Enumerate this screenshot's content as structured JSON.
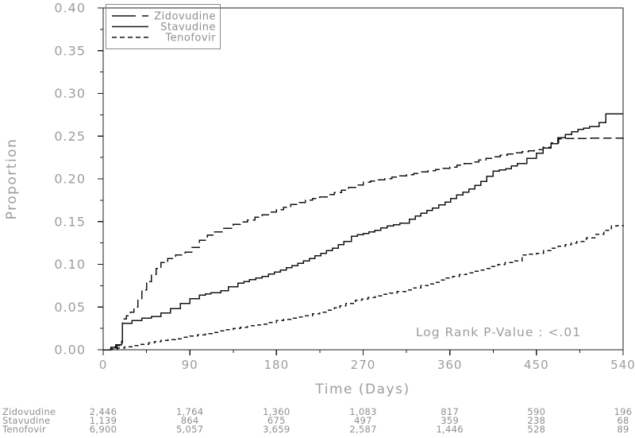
{
  "figure": {
    "background": "#ffffff",
    "curve_color": "#141414",
    "label_color": "#9d9d9d",
    "risk_text_color": "#8f8f8f"
  },
  "chart_data": {
    "type": "line",
    "subtype": "kaplan-meier-cumulative-incidence",
    "title": "",
    "xlabel": "Time (Days)",
    "ylabel": "Proportion",
    "xlim": [
      0,
      540
    ],
    "ylim": [
      0.0,
      0.4
    ],
    "x_ticks": [
      0,
      90,
      180,
      270,
      360,
      450,
      540
    ],
    "y_ticks": [
      0.0,
      0.05,
      0.1,
      0.15,
      0.2,
      0.25,
      0.3,
      0.35,
      0.4
    ],
    "grid": false,
    "legend_position": "top-left",
    "annotation": "Log Rank P-Value : <.01",
    "series": [
      {
        "name": "Zidovudine",
        "line_style": "long-dash",
        "points": [
          [
            0,
            0
          ],
          [
            8,
            0.002
          ],
          [
            14,
            0.005
          ],
          [
            19,
            0.008
          ],
          [
            20,
            0.036
          ],
          [
            24,
            0.04
          ],
          [
            28,
            0.044
          ],
          [
            32,
            0.05
          ],
          [
            36,
            0.058
          ],
          [
            40,
            0.07
          ],
          [
            45,
            0.08
          ],
          [
            50,
            0.088
          ],
          [
            55,
            0.095
          ],
          [
            60,
            0.102
          ],
          [
            67,
            0.107
          ],
          [
            75,
            0.111
          ],
          [
            85,
            0.114
          ],
          [
            92,
            0.12
          ],
          [
            100,
            0.128
          ],
          [
            108,
            0.134
          ],
          [
            115,
            0.138
          ],
          [
            125,
            0.142
          ],
          [
            135,
            0.147
          ],
          [
            150,
            0.152
          ],
          [
            165,
            0.158
          ],
          [
            180,
            0.164
          ],
          [
            195,
            0.17
          ],
          [
            210,
            0.175
          ],
          [
            225,
            0.179
          ],
          [
            240,
            0.184
          ],
          [
            255,
            0.19
          ],
          [
            270,
            0.196
          ],
          [
            285,
            0.199
          ],
          [
            300,
            0.202
          ],
          [
            315,
            0.205
          ],
          [
            330,
            0.208
          ],
          [
            345,
            0.211
          ],
          [
            360,
            0.214
          ],
          [
            375,
            0.218
          ],
          [
            390,
            0.222
          ],
          [
            405,
            0.226
          ],
          [
            420,
            0.229
          ],
          [
            435,
            0.232
          ],
          [
            448,
            0.234
          ],
          [
            457,
            0.237
          ],
          [
            465,
            0.242
          ],
          [
            473,
            0.247
          ],
          [
            540,
            0.248
          ]
        ]
      },
      {
        "name": "Stavudine",
        "line_style": "solid",
        "points": [
          [
            0,
            0
          ],
          [
            8,
            0.003
          ],
          [
            13,
            0.006
          ],
          [
            19,
            0.01
          ],
          [
            20,
            0.031
          ],
          [
            30,
            0.034
          ],
          [
            40,
            0.037
          ],
          [
            50,
            0.039
          ],
          [
            60,
            0.043
          ],
          [
            70,
            0.048
          ],
          [
            80,
            0.054
          ],
          [
            90,
            0.06
          ],
          [
            100,
            0.064
          ],
          [
            112,
            0.067
          ],
          [
            122,
            0.069
          ],
          [
            130,
            0.074
          ],
          [
            140,
            0.078
          ],
          [
            152,
            0.082
          ],
          [
            165,
            0.086
          ],
          [
            178,
            0.091
          ],
          [
            190,
            0.096
          ],
          [
            202,
            0.101
          ],
          [
            214,
            0.107
          ],
          [
            226,
            0.113
          ],
          [
            238,
            0.119
          ],
          [
            250,
            0.127
          ],
          [
            258,
            0.133
          ],
          [
            270,
            0.136
          ],
          [
            282,
            0.14
          ],
          [
            295,
            0.145
          ],
          [
            308,
            0.148
          ],
          [
            318,
            0.153
          ],
          [
            330,
            0.16
          ],
          [
            342,
            0.166
          ],
          [
            355,
            0.173
          ],
          [
            367,
            0.181
          ],
          [
            380,
            0.188
          ],
          [
            392,
            0.197
          ],
          [
            405,
            0.209
          ],
          [
            418,
            0.212
          ],
          [
            430,
            0.218
          ],
          [
            440,
            0.224
          ],
          [
            450,
            0.23
          ],
          [
            457,
            0.236
          ],
          [
            465,
            0.241
          ],
          [
            472,
            0.248
          ],
          [
            480,
            0.252
          ],
          [
            493,
            0.258
          ],
          [
            505,
            0.261
          ],
          [
            515,
            0.266
          ],
          [
            522,
            0.276
          ],
          [
            540,
            0.276
          ]
        ]
      },
      {
        "name": "Tenofovir",
        "line_style": "short-dash",
        "points": [
          [
            0,
            0
          ],
          [
            15,
            0.002
          ],
          [
            30,
            0.005
          ],
          [
            47,
            0.008
          ],
          [
            60,
            0.011
          ],
          [
            75,
            0.013
          ],
          [
            90,
            0.016
          ],
          [
            106,
            0.019
          ],
          [
            120,
            0.022
          ],
          [
            135,
            0.025
          ],
          [
            150,
            0.028
          ],
          [
            164,
            0.03
          ],
          [
            180,
            0.034
          ],
          [
            195,
            0.037
          ],
          [
            210,
            0.04
          ],
          [
            225,
            0.044
          ],
          [
            240,
            0.049
          ],
          [
            252,
            0.054
          ],
          [
            262,
            0.058
          ],
          [
            275,
            0.061
          ],
          [
            290,
            0.065
          ],
          [
            305,
            0.068
          ],
          [
            315,
            0.07
          ],
          [
            330,
            0.075
          ],
          [
            345,
            0.079
          ],
          [
            356,
            0.084
          ],
          [
            370,
            0.088
          ],
          [
            385,
            0.092
          ],
          [
            397,
            0.095
          ],
          [
            410,
            0.1
          ],
          [
            425,
            0.104
          ],
          [
            435,
            0.111
          ],
          [
            450,
            0.113
          ],
          [
            465,
            0.119
          ],
          [
            480,
            0.123
          ],
          [
            492,
            0.127
          ],
          [
            502,
            0.131
          ],
          [
            511,
            0.135
          ],
          [
            520,
            0.14
          ],
          [
            528,
            0.145
          ],
          [
            540,
            0.146
          ]
        ]
      }
    ],
    "risk_table": {
      "times": [
        0,
        90,
        180,
        270,
        360,
        450,
        540
      ],
      "rows": [
        {
          "label": "Zidovudine",
          "values": [
            "2,446",
            "1,764",
            "1,360",
            "1,083",
            "817",
            "590",
            "196"
          ]
        },
        {
          "label": "Stavudine",
          "values": [
            "1,139",
            "864",
            "675",
            "497",
            "359",
            "238",
            "68"
          ]
        },
        {
          "label": "Tenofovir",
          "values": [
            "6,900",
            "5,057",
            "3,659",
            "2,587",
            "1,446",
            "528",
            "89"
          ]
        }
      ]
    }
  }
}
